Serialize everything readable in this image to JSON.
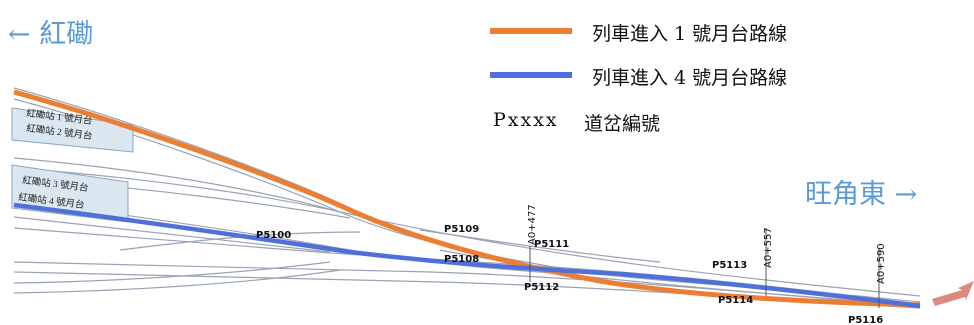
{
  "directions": {
    "left": "← 紅磡",
    "right": "旺角東 →"
  },
  "legend": {
    "route1": {
      "text": "列車進入 1 號月台路線",
      "color": "#ed7d31"
    },
    "route4": {
      "text": "列車進入 4 號月台路線",
      "color": "#4f6fd9"
    },
    "switch_id": {
      "key": "Pxxxx",
      "text": "道岔編號"
    }
  },
  "platforms": {
    "upper": [
      "紅磡站 1 號月台",
      "紅磡站 2 號月台"
    ],
    "lower": [
      "紅磡站 3 號月台",
      "紅磡站 4 號月台"
    ]
  },
  "switches": [
    "P5100",
    "P5109",
    "P5111",
    "P5108",
    "P5112",
    "P5113",
    "P5114",
    "P5116"
  ],
  "kilometre_posts": [
    "A0+477",
    "A0+557",
    "A0+590"
  ],
  "colors": {
    "track": "#9aa3b5",
    "platform_fill": "#dae7f1",
    "platform_stroke": "#8fa5bd",
    "incoming_arrow": "#dc8a7f"
  }
}
